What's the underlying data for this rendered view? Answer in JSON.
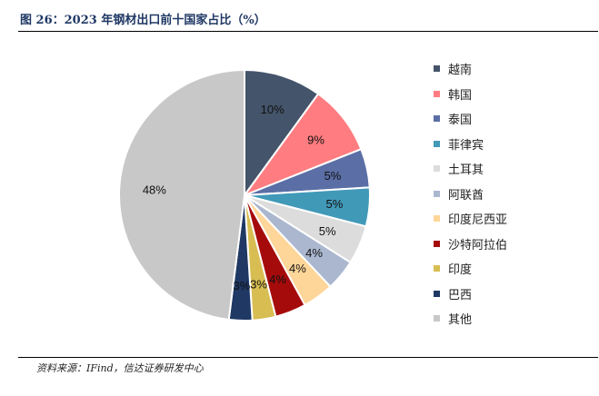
{
  "figure": {
    "title": "图 26：2023 年钢材出口前十国家占比（%）",
    "source": "资料来源：IFind，信达证券研发中心"
  },
  "chart_data": {
    "type": "pie",
    "title": "图 26：2023 年钢材出口前十国家占比（%）",
    "start_angle_deg": 0,
    "direction": "clockwise",
    "legend_position": "right",
    "slices": [
      {
        "label": "越南",
        "value": 10,
        "text": "10%",
        "color": "#44546a"
      },
      {
        "label": "韩国",
        "value": 9,
        "text": "9%",
        "color": "#ff7c80"
      },
      {
        "label": "泰国",
        "value": 5,
        "text": "5%",
        "color": "#5b6fa6"
      },
      {
        "label": "菲律宾",
        "value": 5,
        "text": "5%",
        "color": "#4199b8"
      },
      {
        "label": "土耳其",
        "value": 5,
        "text": "5%",
        "color": "#dcdcdc"
      },
      {
        "label": "阿联酋",
        "value": 4,
        "text": "4%",
        "color": "#aab7cf"
      },
      {
        "label": "印度尼西亚",
        "value": 4,
        "text": "4%",
        "color": "#ffd699"
      },
      {
        "label": "沙特阿拉伯",
        "value": 4,
        "text": "4%",
        "color": "#a50b0b"
      },
      {
        "label": "印度",
        "value": 3,
        "text": "3%",
        "color": "#d8bd52"
      },
      {
        "label": "巴西",
        "value": 3,
        "text": "3%",
        "color": "#1f3864"
      },
      {
        "label": "其他",
        "value": 48,
        "text": "48%",
        "color": "#c8c8c8"
      }
    ]
  }
}
